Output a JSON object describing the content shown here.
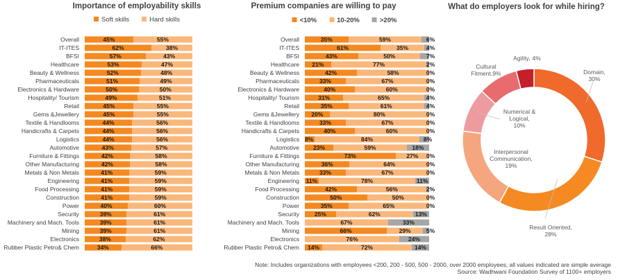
{
  "chart_data": [
    {
      "type": "bar",
      "orientation": "horizontal-stacked-100",
      "title": "Importance of employability skills",
      "legend_position": "top",
      "categories": [
        "Overall",
        "IT-ITES",
        "BFSI",
        "Healthcare",
        "Beauty & Wellness",
        "Pharmaceuticals",
        "Electronics & Hardware",
        "Hospitality/ Tourism",
        "Retail",
        "Gems &Jewellery",
        "Textile & Handlooms",
        "Handicrafts & Carpets",
        "Logistics",
        "Automotive",
        "Furniture & Fittings",
        "Other Manufacturing",
        "Metals & Non Metals",
        "Engineering",
        "Food Processing",
        "Construction",
        "Power",
        "Security",
        "Machinery and Mach. Tools",
        "Mining",
        "Electronics",
        "Rubber Plastic Petro& Chem"
      ],
      "series": [
        {
          "name": "Soft skills",
          "color": "#f5891f",
          "values": [
            45,
            62,
            57,
            53,
            52,
            51,
            50,
            49,
            45,
            45,
            44,
            44,
            44,
            43,
            42,
            42,
            41,
            41,
            41,
            41,
            40,
            39,
            39,
            39,
            38,
            34
          ]
        },
        {
          "name": "Hard skills",
          "color": "#fab77a",
          "values": [
            55,
            38,
            43,
            47,
            48,
            49,
            50,
            51,
            55,
            55,
            56,
            56,
            56,
            57,
            58,
            58,
            59,
            59,
            59,
            59,
            60,
            61,
            61,
            61,
            62,
            66
          ]
        }
      ]
    },
    {
      "type": "bar",
      "orientation": "horizontal-stacked-100",
      "title": "Premium companies are willing to pay",
      "legend_position": "top",
      "categories": [
        "Overall",
        "IT-ITES",
        "BFSI",
        "Healthcare",
        "Beauty & Wellness",
        "Pharmaceuticals",
        "Electronics & Hardware",
        "Hospitality/ Tourism",
        "Retail",
        "Gems &Jewellery",
        "Textile & Handlooms",
        "Handicrafts & Carpets",
        "Logistics",
        "Automotive",
        "Furniture & Fittings",
        "Other Manufacturing",
        "Metals & Non Metals",
        "Engineering",
        "Food Processing",
        "Construction",
        "Power",
        "Security",
        "Machinery and Mach. Tools",
        "Mining",
        "Electronics",
        "Rubber Plastic Petro& Chem"
      ],
      "series": [
        {
          "name": "<10%",
          "color": "#f5891f",
          "values": [
            35,
            61,
            43,
            21,
            42,
            33,
            40,
            31,
            35,
            20,
            33,
            40,
            8,
            23,
            73,
            36,
            33,
            11,
            42,
            50,
            35,
            25,
            0,
            66,
            0,
            14
          ]
        },
        {
          "name": "10-20%",
          "color": "#fab77a",
          "values": [
            59,
            35,
            50,
            77,
            58,
            67,
            60,
            65,
            61,
            80,
            67,
            60,
            84,
            59,
            27,
            64,
            67,
            78,
            56,
            50,
            65,
            62,
            67,
            29,
            76,
            72
          ]
        },
        {
          "name": ">20%",
          "color": "#a6a6a6",
          "values": [
            6,
            4,
            7,
            2,
            0,
            0,
            0,
            4,
            4,
            0,
            0,
            0,
            8,
            18,
            0,
            0,
            0,
            11,
            2,
            0,
            0,
            13,
            33,
            5,
            24,
            14
          ]
        }
      ]
    },
    {
      "type": "pie",
      "donut": true,
      "title": "What do employers look for while hiring?",
      "slices": [
        {
          "label": "Domain,",
          "value": 30,
          "text": "30%",
          "color": "#f06a2c"
        },
        {
          "label": "Result Oriented,",
          "value": 28,
          "text": "28%",
          "color": "#f58a22"
        },
        {
          "label": "Interpersonal Communication,",
          "value": 19,
          "text": "19%",
          "color": "#f5a67f"
        },
        {
          "label": "Numerical & Logical,",
          "value": 10,
          "text": "10%",
          "color": "#ee9ba0"
        },
        {
          "label": "Cultural Fitment,",
          "value": 9,
          "text": "9%",
          "color": "#e86b6e"
        },
        {
          "label": "Agility,",
          "value": 4,
          "text": "4%",
          "color": "#c3202a"
        }
      ]
    }
  ],
  "footer": {
    "note": "Note: Includes organizations with employees <200, 200 - 500, 500 - 2000, over 2000 employees; all values indicated are simple average",
    "source": "Source: Wadhwani Foundation Survey of 1100+ employers"
  }
}
